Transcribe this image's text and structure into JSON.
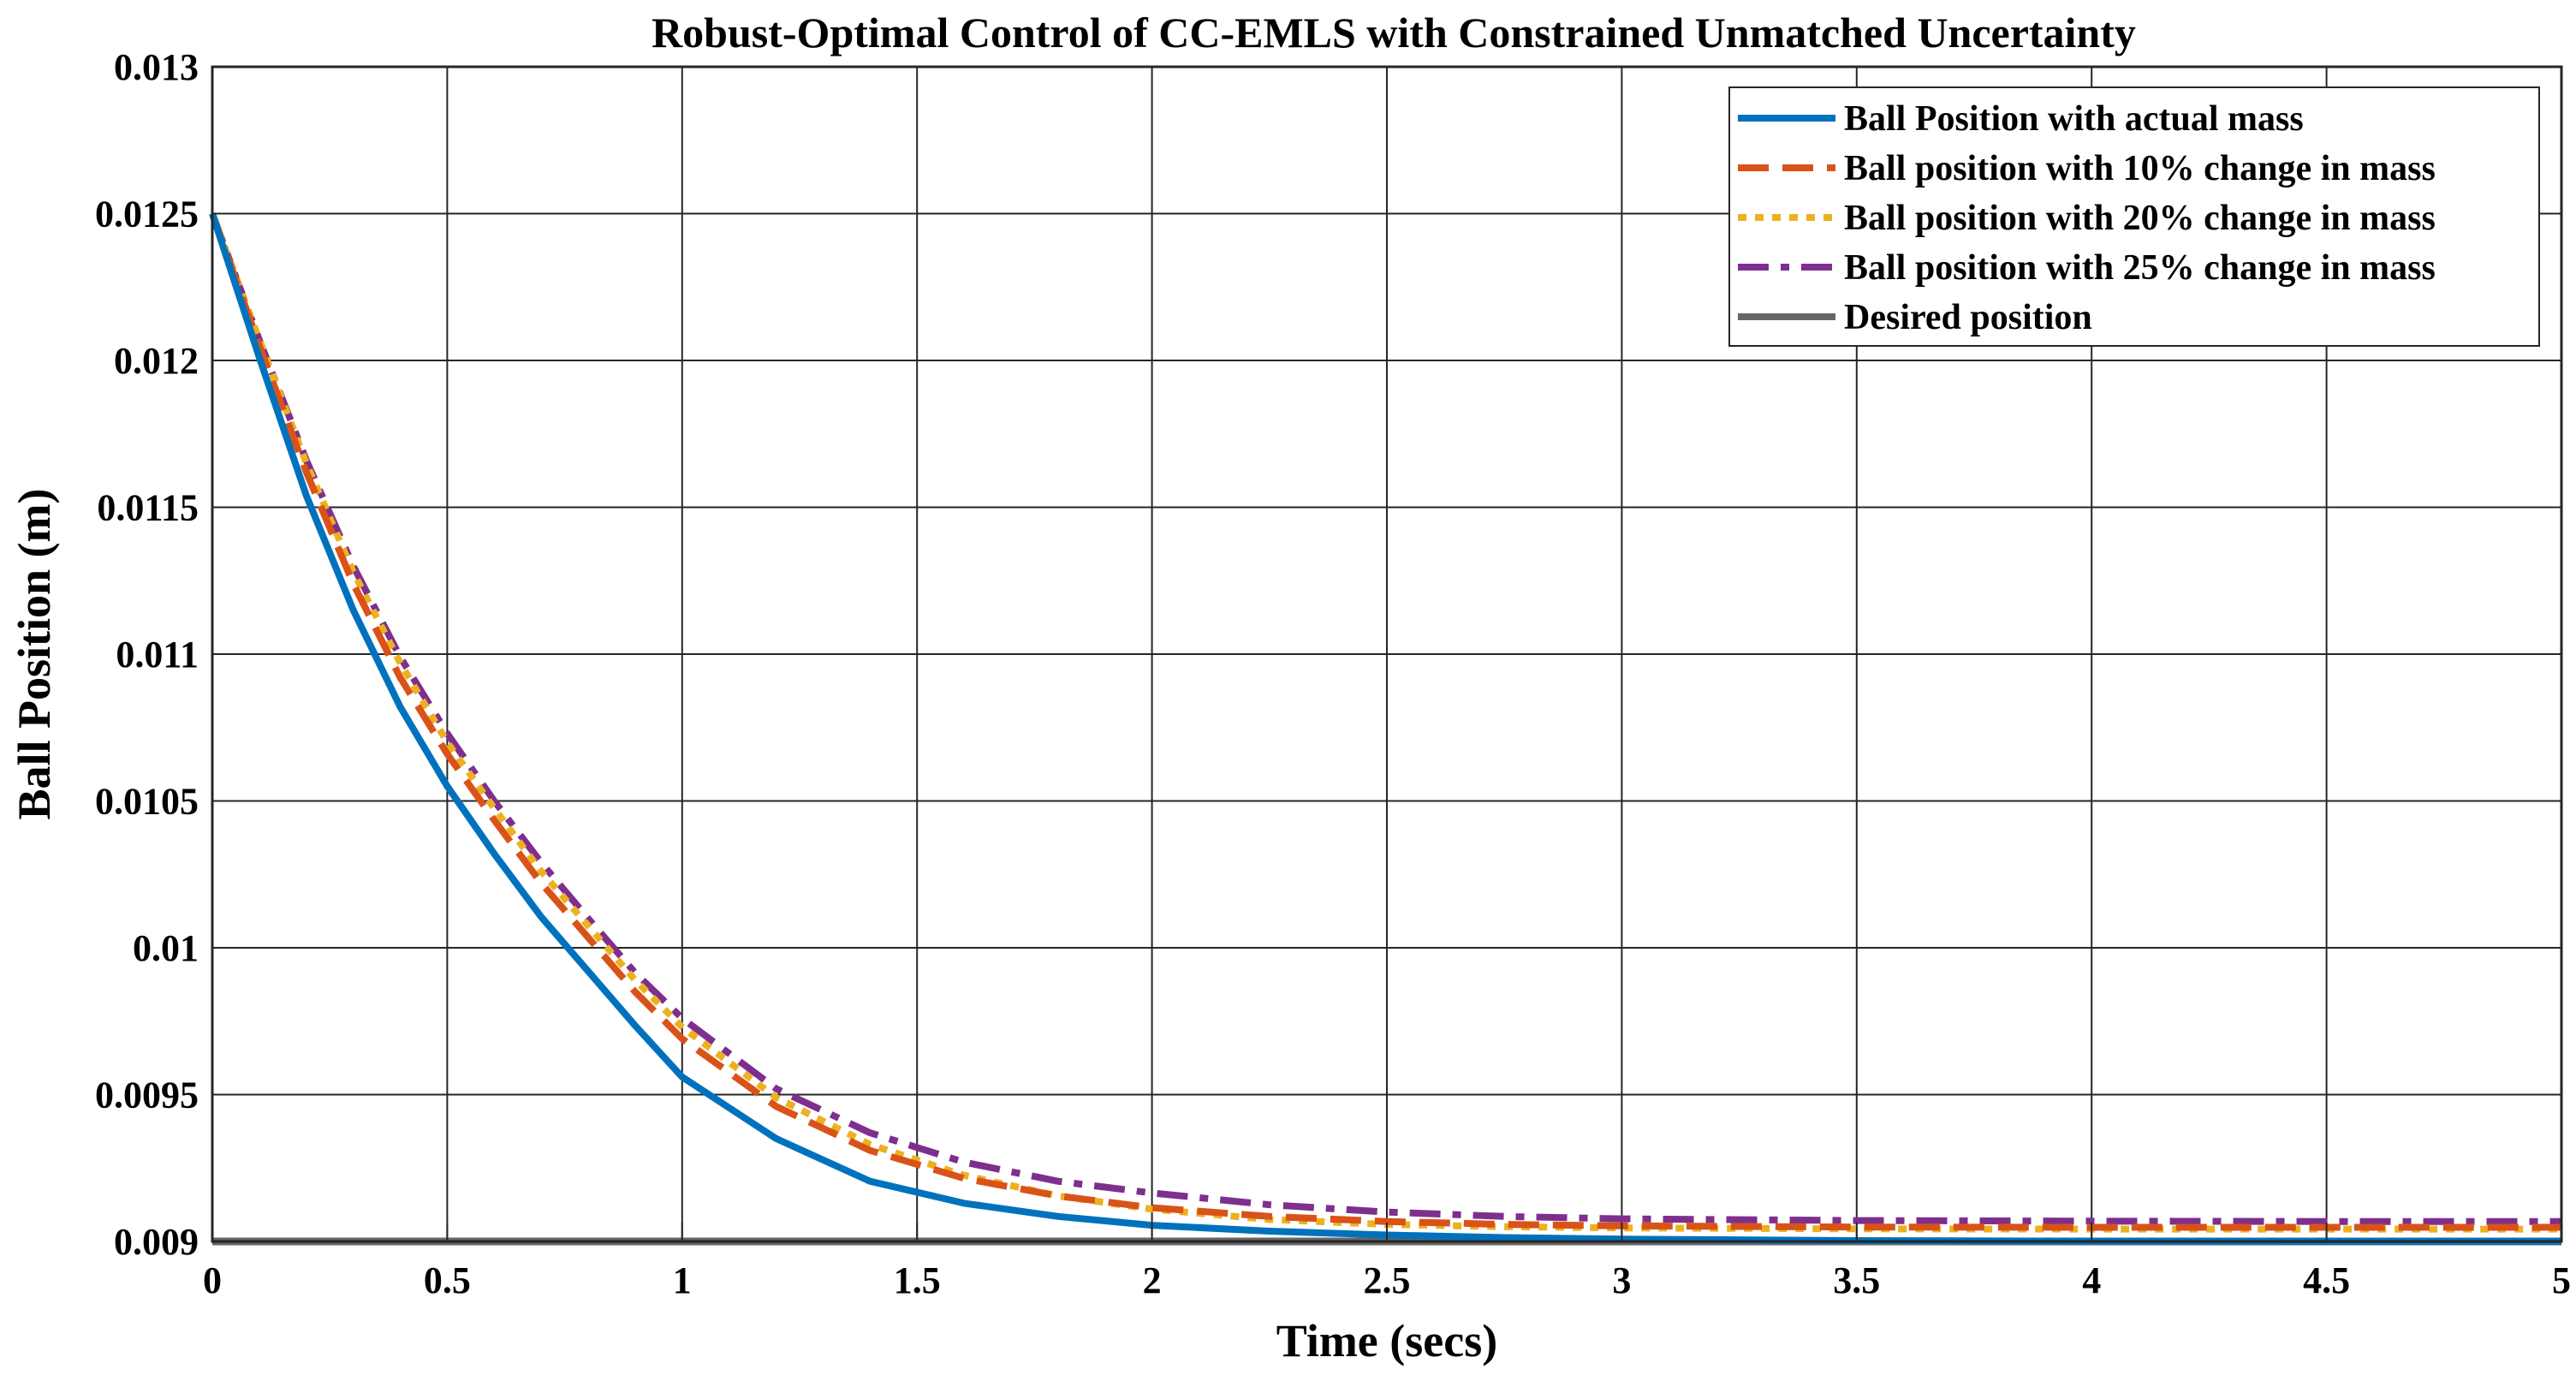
{
  "chart_data": {
    "type": "line",
    "title": "Robust-Optimal Control of CC-EMLS with Constrained Unmatched Uncertainty",
    "xlabel": "Time (secs)",
    "ylabel": "Ball Position (m)",
    "xlim": [
      0,
      5
    ],
    "ylim": [
      0.009,
      0.013
    ],
    "xticks": [
      0,
      0.5,
      1,
      1.5,
      2,
      2.5,
      3,
      3.5,
      4,
      4.5,
      5
    ],
    "xtick_labels": [
      "0",
      "0.5",
      "1",
      "1.5",
      "2",
      "2.5",
      "3",
      "3.5",
      "4",
      "4.5",
      "5"
    ],
    "yticks": [
      0.009,
      0.0095,
      0.01,
      0.0105,
      0.011,
      0.0115,
      0.012,
      0.0125,
      0.013
    ],
    "ytick_labels": [
      "0.009",
      "0.0095",
      "0.01",
      "0.0105",
      "0.011",
      "0.0115",
      "0.012",
      "0.0125",
      "0.013"
    ],
    "grid": true,
    "legend_position": "top-right",
    "series": [
      {
        "name": "Ball Position with actual mass",
        "color": "#0072BD",
        "style": "solid",
        "x": [
          0,
          0.1,
          0.2,
          0.3,
          0.4,
          0.5,
          0.6,
          0.7,
          0.8,
          0.9,
          1.0,
          1.2,
          1.4,
          1.6,
          1.8,
          2.0,
          2.25,
          2.5,
          2.75,
          3.0,
          3.5,
          4.0,
          4.5,
          5.0
        ],
        "values": [
          0.0125,
          0.01201,
          0.01154,
          0.01115,
          0.01082,
          0.01055,
          0.01032,
          0.010105,
          0.00992,
          0.009735,
          0.00956,
          0.00935,
          0.009205,
          0.00913,
          0.009085,
          0.009055,
          0.009035,
          0.009022,
          0.009013,
          0.009008,
          0.009003,
          0.009001,
          0.009,
          0.009
        ]
      },
      {
        "name": "Ball position with 10% change in mass",
        "color": "#D95319",
        "style": "dashed",
        "x": [
          0,
          0.1,
          0.2,
          0.3,
          0.4,
          0.5,
          0.6,
          0.7,
          0.8,
          0.9,
          1.0,
          1.2,
          1.4,
          1.6,
          1.8,
          2.0,
          2.25,
          2.5,
          2.75,
          3.0,
          3.5,
          4.0,
          4.5,
          5.0
        ],
        "values": [
          0.0125,
          0.01205,
          0.01162,
          0.01124,
          0.01092,
          0.01066,
          0.010435,
          0.01022,
          0.010035,
          0.00985,
          0.00969,
          0.00946,
          0.00931,
          0.009215,
          0.009155,
          0.009115,
          0.009085,
          0.009068,
          0.009058,
          0.009053,
          0.009049,
          0.009048,
          0.009048,
          0.009048
        ]
      },
      {
        "name": "Ball position with 20% change in mass",
        "color": "#EDB120",
        "style": "dotted",
        "x": [
          0,
          0.1,
          0.2,
          0.3,
          0.4,
          0.5,
          0.6,
          0.7,
          0.8,
          0.9,
          1.0,
          1.2,
          1.4,
          1.6,
          1.8,
          2.0,
          2.25,
          2.5,
          2.75,
          3.0,
          3.5,
          4.0,
          4.5,
          5.0
        ],
        "values": [
          0.0125,
          0.01207,
          0.01165,
          0.01128,
          0.01097,
          0.0107,
          0.010475,
          0.01026,
          0.010075,
          0.00989,
          0.00973,
          0.00949,
          0.00933,
          0.009225,
          0.009155,
          0.00911,
          0.009075,
          0.009058,
          0.00905,
          0.009046,
          0.009043,
          0.009042,
          0.009042,
          0.009042
        ]
      },
      {
        "name": "Ball position with 25% change in mass",
        "color": "#7E2F8E",
        "style": "dashdot",
        "x": [
          0,
          0.1,
          0.2,
          0.3,
          0.4,
          0.5,
          0.6,
          0.7,
          0.8,
          0.9,
          1.0,
          1.2,
          1.4,
          1.6,
          1.8,
          2.0,
          2.25,
          2.5,
          2.75,
          3.0,
          3.5,
          4.0,
          4.5,
          5.0
        ],
        "values": [
          0.0125,
          0.01207,
          0.01166,
          0.0113,
          0.01099,
          0.01073,
          0.0105,
          0.01029,
          0.0101,
          0.009915,
          0.00976,
          0.00952,
          0.00937,
          0.00927,
          0.009205,
          0.009165,
          0.009125,
          0.0091,
          0.009085,
          0.009077,
          0.009071,
          0.009069,
          0.009068,
          0.009068
        ]
      },
      {
        "name": "Desired position",
        "color": "#666666",
        "style": "solid",
        "x": [
          0,
          5
        ],
        "values": [
          0.009,
          0.009
        ]
      }
    ]
  }
}
